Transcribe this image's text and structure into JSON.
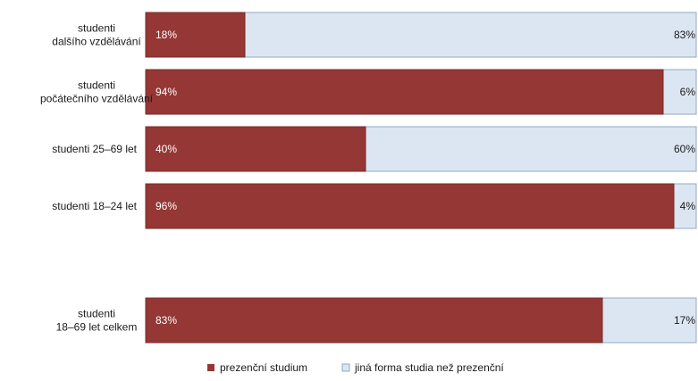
{
  "chart_data": {
    "type": "bar",
    "orientation": "horizontal",
    "stacked": true,
    "percent_stacked": true,
    "categories": [
      [
        "studenti",
        "dalšího vzdělávání"
      ],
      [
        "studenti",
        "počátečního vzdělávání"
      ],
      [
        "studenti 25–69 let"
      ],
      [
        "studenti 18–24 let"
      ],
      [
        "studenti",
        "18–69 let celkem"
      ]
    ],
    "series": [
      {
        "name": "prezenční studium",
        "values": [
          18,
          94,
          40,
          96,
          83
        ],
        "labels": [
          "18%",
          "94%",
          "40%",
          "96%",
          "83%"
        ],
        "color": "#953735"
      },
      {
        "name": "jiná forma studia než prezenční",
        "values": [
          83,
          6,
          60,
          4,
          17
        ],
        "labels": [
          "83%",
          "6%",
          "60%",
          "4%",
          "17%"
        ],
        "color": "#dce6f2"
      }
    ],
    "xlim": [
      0,
      100
    ],
    "grid": false,
    "legend": "bottom",
    "colors": {
      "border": "#8ea9c8"
    }
  }
}
